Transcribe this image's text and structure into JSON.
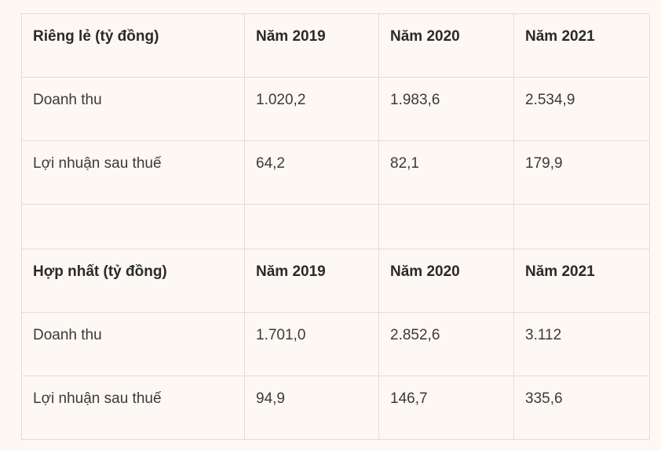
{
  "sections": [
    {
      "header": [
        "Riêng lẻ (tỷ đồng)",
        "Năm 2019",
        "Năm 2020",
        "Năm 2021"
      ],
      "rows": [
        [
          "Doanh thu",
          "1.020,2",
          "1.983,6",
          "2.534,9"
        ],
        [
          "Lợi nhuận sau thuế",
          "64,2",
          "82,1",
          "179,9"
        ]
      ]
    },
    {
      "header": [
        "Hợp nhất (tỷ đồng)",
        "Năm 2019",
        "Năm 2020",
        "Năm 2021"
      ],
      "rows": [
        [
          "Doanh thu",
          "1.701,0",
          "2.852,6",
          "3.112"
        ],
        [
          "Lợi nhuận sau thuế",
          "94,9",
          "146,7",
          "335,6"
        ]
      ]
    }
  ]
}
